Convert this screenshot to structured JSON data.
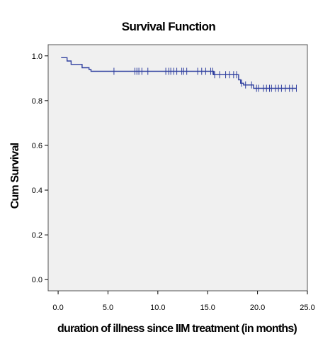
{
  "chart_data": {
    "type": "line",
    "title": "Survival Function",
    "xlabel": "duration of illness since IIM treatment (in months)",
    "ylabel": "Cum Survival",
    "xlim": [
      -1,
      25
    ],
    "ylim": [
      -0.05,
      1.05
    ],
    "x_ticks": [
      0.0,
      5.0,
      10.0,
      15.0,
      20.0,
      25.0
    ],
    "x_tick_labels": [
      "0.0",
      "5.0",
      "10.0",
      "15.0",
      "20.0",
      "25.0"
    ],
    "y_ticks": [
      0.0,
      0.2,
      0.4,
      0.6,
      0.8,
      1.0
    ],
    "y_tick_labels": [
      "0.0",
      "0.2",
      "0.4",
      "0.6",
      "0.8",
      "1.0"
    ],
    "grid": false,
    "colors": {
      "plot_background": "#f0f0f0",
      "series": "#2f3f9f"
    },
    "series": [
      {
        "name": "",
        "style": "step",
        "steps": [
          [
            0.3,
            0.992
          ],
          [
            0.9,
            0.977
          ],
          [
            1.3,
            0.962
          ],
          [
            2.4,
            0.947
          ],
          [
            3.1,
            0.939
          ],
          [
            3.3,
            0.931
          ],
          [
            15.6,
            0.916
          ],
          [
            18.1,
            0.893
          ],
          [
            18.3,
            0.878
          ],
          [
            18.6,
            0.87
          ],
          [
            19.6,
            0.855
          ],
          [
            23.9,
            0.855
          ]
        ],
        "censored": [
          [
            5.6,
            0.931
          ],
          [
            7.7,
            0.931
          ],
          [
            7.9,
            0.931
          ],
          [
            8.1,
            0.931
          ],
          [
            8.4,
            0.931
          ],
          [
            9.0,
            0.931
          ],
          [
            10.8,
            0.931
          ],
          [
            11.1,
            0.931
          ],
          [
            11.3,
            0.931
          ],
          [
            11.6,
            0.931
          ],
          [
            11.9,
            0.931
          ],
          [
            12.4,
            0.931
          ],
          [
            12.6,
            0.931
          ],
          [
            12.9,
            0.931
          ],
          [
            14.0,
            0.931
          ],
          [
            14.4,
            0.931
          ],
          [
            14.8,
            0.931
          ],
          [
            15.3,
            0.931
          ],
          [
            15.5,
            0.931
          ],
          [
            15.7,
            0.916
          ],
          [
            16.2,
            0.916
          ],
          [
            16.8,
            0.916
          ],
          [
            17.2,
            0.916
          ],
          [
            17.6,
            0.916
          ],
          [
            17.9,
            0.916
          ],
          [
            18.4,
            0.878
          ],
          [
            18.8,
            0.87
          ],
          [
            19.4,
            0.87
          ],
          [
            19.9,
            0.855
          ],
          [
            20.1,
            0.855
          ],
          [
            20.6,
            0.855
          ],
          [
            20.9,
            0.855
          ],
          [
            21.2,
            0.855
          ],
          [
            21.4,
            0.855
          ],
          [
            21.8,
            0.855
          ],
          [
            22.1,
            0.855
          ],
          [
            22.4,
            0.855
          ],
          [
            22.8,
            0.855
          ],
          [
            23.2,
            0.855
          ],
          [
            23.5,
            0.855
          ],
          [
            23.9,
            0.855
          ]
        ]
      }
    ]
  }
}
